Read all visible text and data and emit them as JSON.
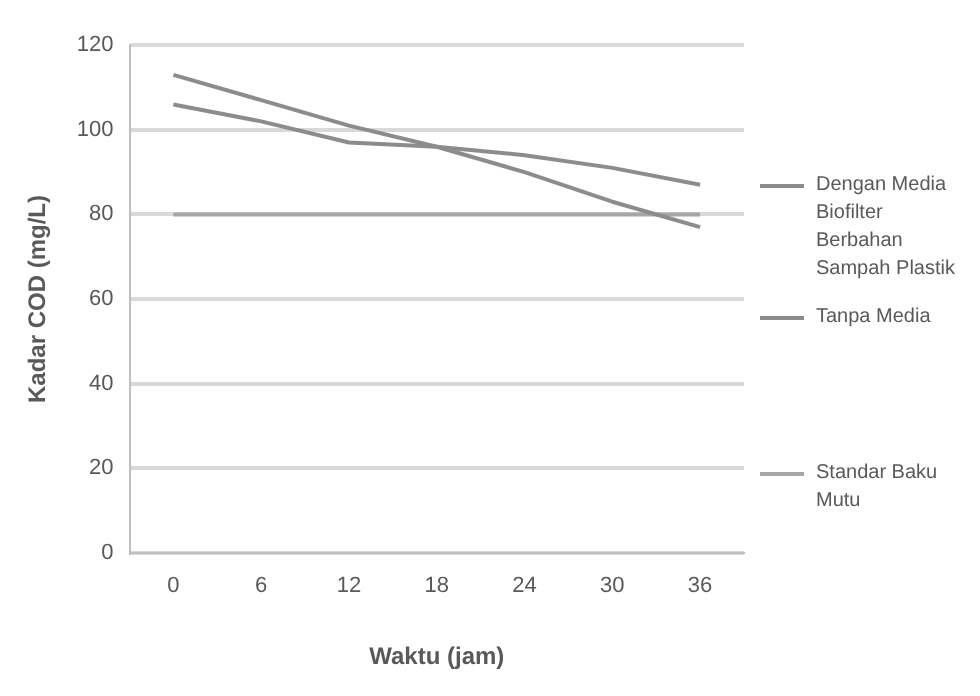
{
  "chart_data": {
    "type": "line",
    "xlabel": "Waktu (jam)",
    "ylabel": "Kadar COD (mg/L)",
    "categories": [
      "0",
      "6",
      "12",
      "18",
      "24",
      "30",
      "36"
    ],
    "series": [
      {
        "name": "Dengan Media Biofilter Berbahan Sampah Plastik",
        "color": "#8c8c8c",
        "values": [
          113,
          107,
          101,
          96,
          90,
          83,
          77
        ]
      },
      {
        "name": "Tanpa Media",
        "color": "#8c8c8c",
        "values": [
          106,
          102,
          97,
          96,
          94,
          91,
          87
        ]
      },
      {
        "name": "Standar Baku Mutu",
        "color": "#a6a6a6",
        "values": [
          80,
          80,
          80,
          80,
          80,
          80,
          80
        ]
      }
    ],
    "ylim": [
      0,
      120
    ],
    "yticks": [
      0,
      20,
      40,
      60,
      80,
      100,
      120
    ],
    "grid": "y",
    "legend": "right",
    "marker": "none",
    "line_style": "solid"
  }
}
